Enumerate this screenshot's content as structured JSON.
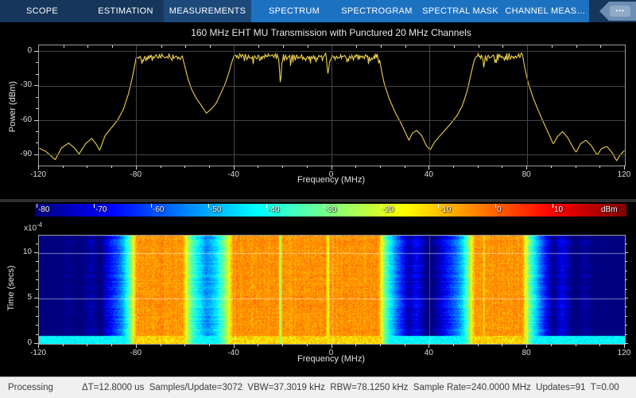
{
  "ui": {
    "tabs": [
      {
        "label": "SCOPE",
        "active": false
      },
      {
        "label": "ESTIMATION",
        "active": false
      },
      {
        "label": "MEASUREMENTS",
        "active": true
      }
    ],
    "contextual_tabs": [
      {
        "label": "SPECTRUM"
      },
      {
        "label": "SPECTROGRAM"
      },
      {
        "label": "SPECTRAL MASK"
      },
      {
        "label": "CHANNEL MEAS…"
      }
    ],
    "overflow_label": "•••",
    "colors": {
      "tabbar_bg": "#16365B",
      "active_tab_bg": "#1C4979",
      "contextual_tab_bg": "#1D71C1",
      "trace_yellow": "#EDD04E",
      "status_bg": "#F0F0F0"
    }
  },
  "status": {
    "state": "Processing",
    "metrics": "ΔT=12.8000 us  Samples/Update=3072  VBW=37.3019 kHz  RBW=78.1250 kHz  Sample Rate=240.0000 MHz  Updates=91  T=0.00"
  },
  "chart_data": [
    {
      "type": "line",
      "title": "160 MHz EHT MU Transmission with Punctured 20 MHz Channels",
      "xlabel": "Frequency (MHz)",
      "ylabel": "Power (dBm)",
      "xlim": [
        -120,
        120
      ],
      "ylim": [
        -99,
        5.5
      ],
      "x_ticks": [
        -120,
        -80,
        -40,
        0,
        40,
        80,
        120
      ],
      "x_minor_step": 10,
      "y_ticks": [
        0,
        -30,
        -60,
        -90
      ],
      "y_minor_step": 10,
      "grid": true,
      "line_color": "#EDD04E",
      "occupied_level_dbm": -4.7,
      "noise_amp_db": 3.8,
      "noisy_ranges_mhz": [
        [
          -80.3,
          -61.3
        ],
        [
          -40.4,
          19.4
        ],
        [
          58.9,
          78.3
        ]
      ],
      "envelope_points_dbm": [
        [
          -120,
          -84
        ],
        [
          -117.5,
          -86.5
        ],
        [
          -113.5,
          -94
        ],
        [
          -111,
          -84
        ],
        [
          -108,
          -79.5
        ],
        [
          -105.5,
          -84
        ],
        [
          -103.7,
          -89
        ],
        [
          -101,
          -80
        ],
        [
          -98.5,
          -75.5
        ],
        [
          -96.5,
          -81
        ],
        [
          -95.3,
          -86
        ],
        [
          -93,
          -73
        ],
        [
          -90,
          -65
        ],
        [
          -88,
          -60
        ],
        [
          -85.5,
          -50
        ],
        [
          -83.5,
          -37
        ],
        [
          -82,
          -24
        ],
        [
          -80.8,
          -11
        ],
        [
          -80.3,
          -5
        ],
        [
          -61.3,
          -5
        ],
        [
          -60.4,
          -12
        ],
        [
          -59,
          -24
        ],
        [
          -57.5,
          -33
        ],
        [
          -55.5,
          -41
        ],
        [
          -53.5,
          -47
        ],
        [
          -51.5,
          -53.5
        ],
        [
          -49.5,
          -50
        ],
        [
          -47.5,
          -45
        ],
        [
          -45.5,
          -36
        ],
        [
          -44,
          -29
        ],
        [
          -42.5,
          -20
        ],
        [
          -41.2,
          -10
        ],
        [
          -40.4,
          -5
        ],
        [
          -21.8,
          -5
        ],
        [
          -21.1,
          -30
        ],
        [
          -20.4,
          -5
        ],
        [
          -2.5,
          -5
        ],
        [
          -1.6,
          -19.5
        ],
        [
          -0.7,
          -5
        ],
        [
          19.4,
          -5
        ],
        [
          20.3,
          -16
        ],
        [
          21.5,
          -28
        ],
        [
          23.5,
          -41
        ],
        [
          26,
          -53
        ],
        [
          28.5,
          -63
        ],
        [
          30.5,
          -72
        ],
        [
          31.6,
          -77
        ],
        [
          33,
          -71
        ],
        [
          34.8,
          -68.5
        ],
        [
          36.8,
          -73
        ],
        [
          38.8,
          -82
        ],
        [
          40.3,
          -85.5
        ],
        [
          42,
          -79
        ],
        [
          44.2,
          -73.5
        ],
        [
          46.5,
          -68
        ],
        [
          49,
          -62
        ],
        [
          51.5,
          -55
        ],
        [
          53.5,
          -47
        ],
        [
          55.5,
          -34
        ],
        [
          57.2,
          -18
        ],
        [
          58.3,
          -8
        ],
        [
          58.9,
          -5
        ],
        [
          61.8,
          -5
        ],
        [
          62.3,
          -14
        ],
        [
          62.9,
          -5
        ],
        [
          78.3,
          -5
        ],
        [
          79.3,
          -16
        ],
        [
          80.5,
          -27
        ],
        [
          82.5,
          -40
        ],
        [
          85,
          -53
        ],
        [
          87.5,
          -65
        ],
        [
          89.5,
          -74
        ],
        [
          90.8,
          -80.5
        ],
        [
          92.5,
          -74
        ],
        [
          94.6,
          -69.5
        ],
        [
          96.8,
          -75
        ],
        [
          98.8,
          -83
        ],
        [
          100.2,
          -87.5
        ],
        [
          102,
          -80
        ],
        [
          104.2,
          -77
        ],
        [
          106.5,
          -82
        ],
        [
          108.8,
          -90
        ],
        [
          110.5,
          -84.5
        ],
        [
          112.8,
          -82.5
        ],
        [
          115,
          -88
        ],
        [
          116.8,
          -95
        ],
        [
          118.2,
          -90
        ],
        [
          120,
          -86
        ]
      ]
    },
    {
      "type": "heatmap",
      "xlabel": "Frequency (MHz)",
      "ylabel": "Time (secs)",
      "y_multiplier_base": "x10",
      "y_multiplier_exp": "-4",
      "xlim": [
        -120,
        120
      ],
      "x_ticks": [
        -120,
        -80,
        -40,
        0,
        40,
        80,
        120
      ],
      "x_minor_step": 10,
      "y_ticks": [
        0,
        5,
        10
      ],
      "y_minor_step": 1,
      "time_max_e4_secs": 11.9,
      "colormap": "jet",
      "color_range_dbm": [
        -80.3,
        22.9
      ],
      "colorbar_ticks": [
        -80,
        -70,
        -60,
        -50,
        -40,
        -30,
        -20,
        -10,
        0,
        10
      ],
      "colorbar_unit": "dBm",
      "source": "power-vs-frequency over time, derived from spectrum envelope of chart 0",
      "initial_transient": {
        "duration_e4_secs": 0.9,
        "floor_dbm": -45
      }
    }
  ]
}
